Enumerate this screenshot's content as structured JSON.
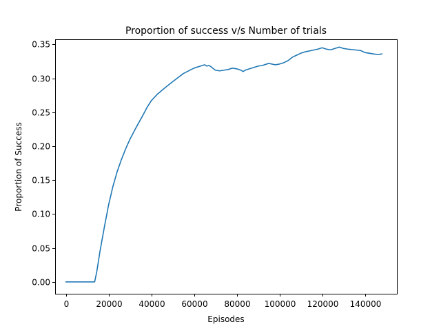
{
  "chart_data": {
    "type": "line",
    "title": "Proportion of success v/s Number of trials",
    "xlabel": "Episodes",
    "ylabel": "Proportion of Success",
    "xlim": [
      -5000,
      155000
    ],
    "ylim": [
      -0.0175,
      0.3575
    ],
    "xticks": [
      0,
      20000,
      40000,
      60000,
      80000,
      100000,
      120000,
      140000
    ],
    "xtick_labels": [
      "0",
      "20000",
      "40000",
      "60000",
      "80000",
      "100000",
      "120000",
      "140000"
    ],
    "yticks": [
      0.0,
      0.05,
      0.1,
      0.15,
      0.2,
      0.25,
      0.3,
      0.35
    ],
    "ytick_labels": [
      "0.00",
      "0.05",
      "0.10",
      "0.15",
      "0.20",
      "0.25",
      "0.30",
      "0.35"
    ],
    "grid": false,
    "legend": "none",
    "color": "#1f77b4",
    "series": [
      {
        "x": [
          0,
          5000,
          10000,
          13500,
          14500,
          16000,
          18000,
          20000,
          22000,
          24000,
          26000,
          28000,
          30000,
          33000,
          36000,
          38000,
          40000,
          43000,
          46000,
          50000,
          55000,
          60000,
          63000,
          64000,
          65000,
          66000,
          67000,
          68000,
          70000,
          72000,
          74000,
          76000,
          78000,
          80000,
          82000,
          83000,
          84000,
          86000,
          88000,
          90000,
          92000,
          95000,
          98000,
          100000,
          102000,
          104000,
          106000,
          108000,
          110000,
          112000,
          115000,
          118000,
          120000,
          122000,
          124000,
          126000,
          128000,
          130000,
          132000,
          135000,
          138000,
          140000,
          142000,
          144000,
          146000,
          148000
        ],
        "y": [
          0.0,
          0.0,
          0.0,
          0.0,
          0.015,
          0.045,
          0.08,
          0.113,
          0.14,
          0.162,
          0.18,
          0.196,
          0.21,
          0.228,
          0.245,
          0.257,
          0.267,
          0.277,
          0.285,
          0.295,
          0.307,
          0.315,
          0.318,
          0.319,
          0.32,
          0.318,
          0.319,
          0.317,
          0.312,
          0.311,
          0.312,
          0.313,
          0.315,
          0.314,
          0.312,
          0.31,
          0.312,
          0.314,
          0.316,
          0.318,
          0.319,
          0.322,
          0.32,
          0.321,
          0.323,
          0.326,
          0.331,
          0.334,
          0.337,
          0.339,
          0.341,
          0.343,
          0.345,
          0.343,
          0.342,
          0.344,
          0.346,
          0.344,
          0.343,
          0.342,
          0.341,
          0.338,
          0.337,
          0.336,
          0.335,
          0.336
        ]
      }
    ]
  }
}
